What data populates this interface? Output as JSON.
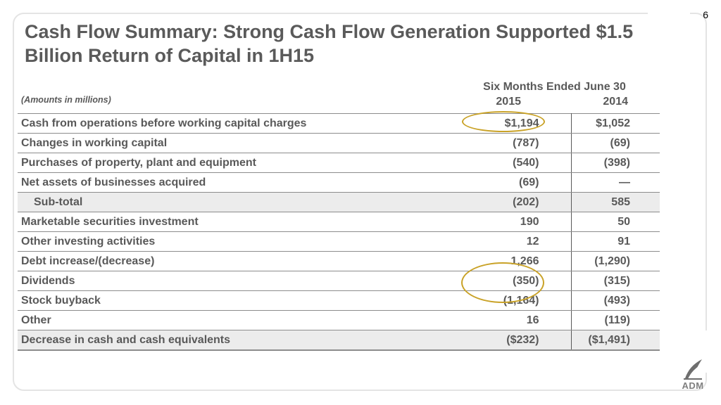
{
  "page_number": "6",
  "title": "Cash Flow Summary: Strong Cash Flow Generation Supported $1.5 Billion Return of Capital in 1H15",
  "units_note": "(Amounts in millions)",
  "column_group_header": "Six Months Ended June 30",
  "columns": [
    "2015",
    "2014"
  ],
  "rows": [
    {
      "label": "Cash from operations before working capital charges",
      "v2015": "$1,194",
      "v2014": "$1,052"
    },
    {
      "label": "Changes in working capital",
      "v2015": "(787)",
      "v2014": "(69)"
    },
    {
      "label": "Purchases of property, plant and equipment",
      "v2015": "(540)",
      "v2014": "(398)"
    },
    {
      "label": "Net assets of businesses acquired",
      "v2015": "(69)",
      "v2014": "—"
    },
    {
      "label": "Sub-total",
      "v2015": "(202)",
      "v2014": "585"
    },
    {
      "label": "Marketable securities investment",
      "v2015": "190",
      "v2014": "50"
    },
    {
      "label": "Other investing activities",
      "v2015": "12",
      "v2014": "91"
    },
    {
      "label": "Debt increase/(decrease)",
      "v2015": "1,266",
      "v2014": "(1,290)"
    },
    {
      "label": "Dividends",
      "v2015": "(350)",
      "v2014": "(315)"
    },
    {
      "label": "Stock buyback",
      "v2015": "(1,164)",
      "v2014": "(493)"
    },
    {
      "label": "Other",
      "v2015": "16",
      "v2014": "(119)"
    },
    {
      "label": "Decrease in cash and cash equivalents",
      "v2015": "($232)",
      "v2014": "($1,491)"
    }
  ],
  "highlight_color": "#c9a227",
  "logo_text": "ADM"
}
